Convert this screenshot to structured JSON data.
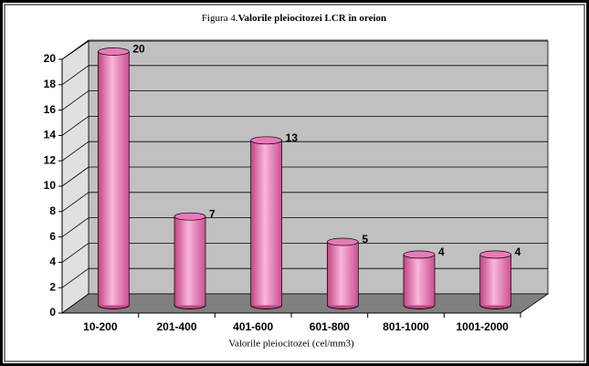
{
  "chart_data": {
    "type": "bar3d",
    "title_number": "Figura 4.",
    "title": "Valorile pleiocitozei LCR în oreion",
    "x_label": "Valorile pleiocitozei (cel/mm3)",
    "categories": [
      "10-200",
      "201-400",
      "401-600",
      "601-800",
      "801-1000",
      "1001-2000"
    ],
    "values": [
      20,
      7,
      13,
      5,
      4,
      4
    ],
    "color": "#e87ab8",
    "ylim": [
      0,
      20
    ],
    "yticks": [
      0,
      2,
      4,
      6,
      8,
      10,
      12,
      14,
      16,
      18,
      20
    ],
    "grid": true
  }
}
